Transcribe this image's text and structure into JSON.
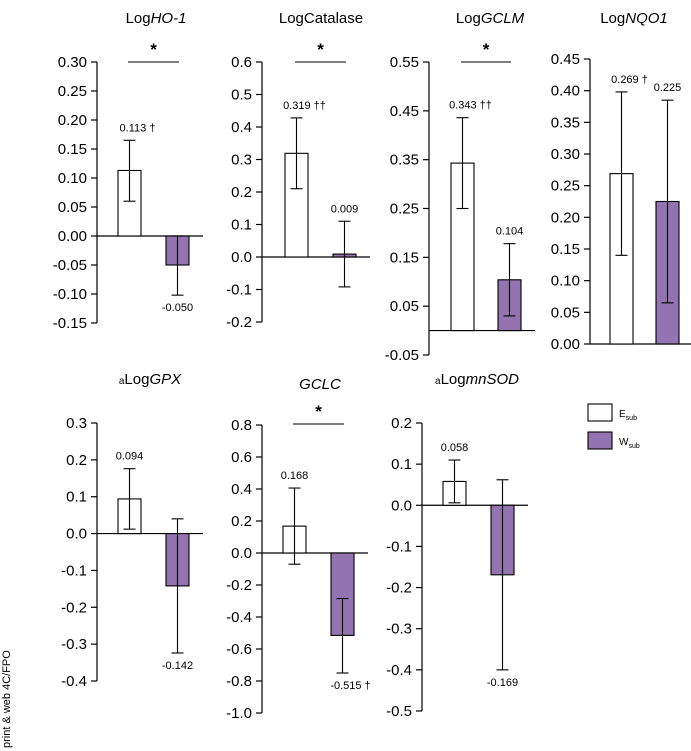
{
  "figure_note": "print & web 4C/FPO",
  "colors": {
    "white_bar": "#ffffff",
    "purple_bar": "#9473b1",
    "stroke": "#000000"
  },
  "legend": [
    {
      "label": "E",
      "subscript": "sub",
      "color": "#ffffff"
    },
    {
      "label": "W",
      "subscript": "sub",
      "color": "#9473b1"
    }
  ],
  "chart_data": [
    {
      "type": "bar",
      "title_prefix": "Log",
      "title_main": "HO-1",
      "title_italic": true,
      "title_sup": "",
      "ylim": [
        -0.15,
        0.3
      ],
      "yticks": [
        "0.30",
        "0.25",
        "0.20",
        "0.15",
        "0.10",
        "0.05",
        "0.00",
        "-0.05",
        "-0.10",
        "-0.15"
      ],
      "baseline": 0,
      "bars": [
        {
          "series": "E",
          "value": 0.113,
          "err_low": 0.06,
          "err_high": 0.165,
          "label": "0.113 †"
        },
        {
          "series": "W",
          "value": -0.05,
          "err_low": -0.102,
          "err_high": 0.0,
          "label": "-0.050"
        }
      ],
      "significance": "*"
    },
    {
      "type": "bar",
      "title_prefix": "Log",
      "title_main": "Catalase",
      "title_italic": false,
      "title_sup": "",
      "ylim": [
        -0.2,
        0.6
      ],
      "yticks": [
        "0.6",
        "0.5",
        "0.4",
        "0.3",
        "0.2",
        "0.1",
        "0.0",
        "-0.1",
        "-0.2"
      ],
      "baseline": 0,
      "bars": [
        {
          "series": "E",
          "value": 0.319,
          "err_low": 0.21,
          "err_high": 0.428,
          "label": "0.319 ††"
        },
        {
          "series": "W",
          "value": 0.009,
          "err_low": -0.092,
          "err_high": 0.11,
          "label": "0.009"
        }
      ],
      "significance": "*"
    },
    {
      "type": "bar",
      "title_prefix": "Log",
      "title_main": "GCLM",
      "title_italic": true,
      "title_sup": "",
      "ylim": [
        -0.05,
        0.55
      ],
      "yticks": [
        "0.55",
        "0.45",
        "0.35",
        "0.25",
        "0.15",
        "0.05",
        "-0.05"
      ],
      "baseline": 0,
      "bars": [
        {
          "series": "E",
          "value": 0.343,
          "err_low": 0.25,
          "err_high": 0.436,
          "label": "0.343 ††"
        },
        {
          "series": "W",
          "value": 0.104,
          "err_low": 0.03,
          "err_high": 0.178,
          "label": "0.104"
        }
      ],
      "significance": "*"
    },
    {
      "type": "bar",
      "title_prefix": "Log",
      "title_main": "NQO1",
      "title_italic": true,
      "title_sup": "",
      "ylim": [
        0.0,
        0.45
      ],
      "yticks": [
        "0.45",
        "0.40",
        "0.35",
        "0.30",
        "0.25",
        "0.20",
        "0.15",
        "0.10",
        "0.05",
        "0.00"
      ],
      "baseline": 0,
      "bars": [
        {
          "series": "E",
          "value": 0.269,
          "err_low": 0.14,
          "err_high": 0.398,
          "label": "0.269 †"
        },
        {
          "series": "W",
          "value": 0.225,
          "err_low": 0.065,
          "err_high": 0.385,
          "label": "0.225"
        }
      ],
      "significance": ""
    },
    {
      "type": "bar",
      "title_prefix": "Log",
      "title_main": "GPX",
      "title_italic": true,
      "title_sup": "a",
      "ylim": [
        -0.4,
        0.3
      ],
      "yticks": [
        "0.3",
        "0.2",
        "0.1",
        "0.0",
        "-0.1",
        "-0.2",
        "-0.3",
        "-0.4"
      ],
      "baseline": 0,
      "bars": [
        {
          "series": "E",
          "value": 0.094,
          "err_low": 0.012,
          "err_high": 0.176,
          "label": "0.094"
        },
        {
          "series": "W",
          "value": -0.142,
          "err_low": -0.324,
          "err_high": 0.04,
          "label": "-0.142"
        }
      ],
      "significance": ""
    },
    {
      "type": "bar",
      "title_prefix": "",
      "title_main": "GCLC",
      "title_italic": true,
      "title_sup": "",
      "ylim": [
        -1.0,
        0.8
      ],
      "yticks": [
        "0.8",
        "0.6",
        "0.4",
        "0.2",
        "0.0",
        "-0.2",
        "-0.4",
        "-0.6",
        "-0.8",
        "-1.0"
      ],
      "baseline": 0,
      "bars": [
        {
          "series": "E",
          "value": 0.168,
          "err_low": -0.07,
          "err_high": 0.406,
          "label": "0.168"
        },
        {
          "series": "W",
          "value": -0.515,
          "err_low": -0.75,
          "err_high": -0.285,
          "label": "-0.515 †"
        }
      ],
      "significance": "*"
    },
    {
      "type": "bar",
      "title_prefix": "Log",
      "title_main": "mnSOD",
      "title_italic": true,
      "title_sup": "a",
      "ylim": [
        -0.5,
        0.2
      ],
      "yticks": [
        "0.2",
        "0.1",
        "0.0",
        "-0.1",
        "-0.2",
        "-0.3",
        "-0.4",
        "-0.5"
      ],
      "baseline": 0,
      "bars": [
        {
          "series": "E",
          "value": 0.058,
          "err_low": 0.006,
          "err_high": 0.11,
          "label": "0.058"
        },
        {
          "series": "W",
          "value": -0.169,
          "err_low": -0.4,
          "err_high": 0.062,
          "label": "-0.169"
        }
      ],
      "significance": ""
    }
  ]
}
